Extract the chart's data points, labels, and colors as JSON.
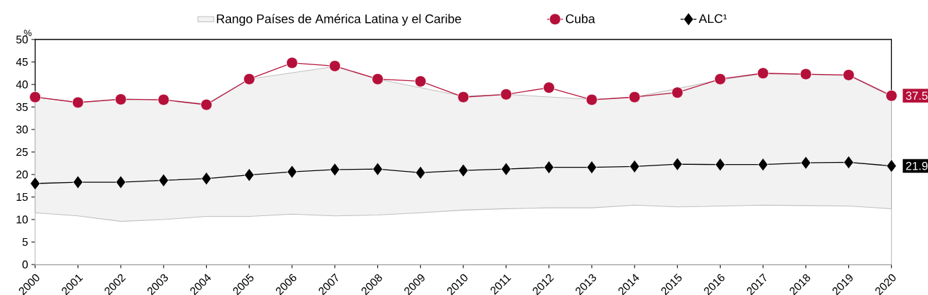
{
  "chart_data": {
    "type": "line",
    "ylabel": "%",
    "categories": [
      "2000",
      "2001",
      "2002",
      "2003",
      "2004",
      "2005",
      "2006",
      "2007",
      "2008",
      "2009",
      "2010",
      "2011",
      "2012",
      "2013",
      "2014",
      "2015",
      "2016",
      "2017",
      "2018",
      "2019",
      "2020"
    ],
    "series": [
      {
        "name": "Rango Países de América Latina y el Caribe",
        "type": "area",
        "color": "#f2f2f2",
        "values": [
          37.2,
          36.0,
          36.8,
          36.6,
          35.7,
          41.2,
          null,
          44.0,
          41.2,
          null,
          37.4,
          37.8,
          null,
          36.7,
          37.2,
          null,
          41.0,
          42.4,
          null,
          42.0,
          37.3
        ]
      },
      {
        "type": "area",
        "color": "#ffffff",
        "values": [
          11.5,
          10.8,
          9.6,
          10.0,
          10.7,
          10.7,
          11.2,
          10.8,
          11.0,
          11.5,
          12.1,
          12.4,
          12.6,
          12.6,
          13.2,
          12.8,
          13.0,
          13.2,
          13.1,
          13.0,
          12.4
        ]
      },
      {
        "name": "Cuba",
        "type": "line",
        "color": "#b5103a",
        "marker": "circle",
        "values": [
          37.2,
          36.0,
          36.7,
          36.6,
          35.5,
          41.2,
          44.8,
          44.1,
          41.2,
          40.7,
          37.2,
          37.8,
          39.3,
          36.6,
          37.2,
          38.2,
          41.2,
          42.5,
          42.3,
          42.1,
          37.5
        ],
        "value_labels": [
          null,
          null,
          null,
          null,
          null,
          null,
          null,
          null,
          null,
          null,
          null,
          null,
          null,
          null,
          null,
          null,
          null,
          null,
          null,
          null,
          "37.5"
        ]
      },
      {
        "name": "ALC¹",
        "type": "line",
        "color": "#000000",
        "marker": "diamond",
        "values": [
          18.0,
          18.3,
          18.3,
          18.7,
          19.1,
          19.9,
          20.6,
          21.1,
          21.2,
          20.4,
          20.9,
          21.2,
          21.6,
          21.6,
          21.8,
          22.3,
          22.2,
          22.2,
          22.6,
          22.7,
          21.9
        ],
        "value_labels": [
          null,
          null,
          null,
          null,
          null,
          null,
          null,
          null,
          null,
          null,
          null,
          null,
          null,
          null,
          null,
          null,
          null,
          null,
          null,
          null,
          "21.9"
        ]
      }
    ],
    "ylim": [
      0,
      50
    ],
    "yticks": [
      0,
      5,
      10,
      15,
      20,
      25,
      30,
      35,
      40,
      45,
      50
    ],
    "grid": false,
    "legend": "top"
  }
}
